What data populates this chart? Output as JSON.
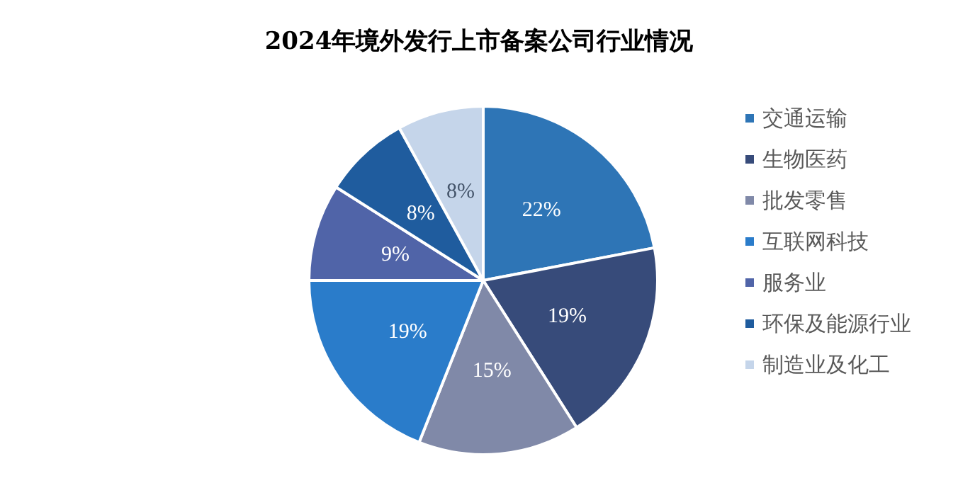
{
  "chart_data": {
    "type": "pie",
    "title": "2024年境外发行上市备案公司行业情况",
    "categories": [
      "交通运输",
      "生物医药",
      "批发零售",
      "互联网科技",
      "服务业",
      "环保及能源行业",
      "制造业及化工"
    ],
    "values": [
      22,
      19,
      15,
      19,
      9,
      8,
      8
    ],
    "colors": [
      "#2e75b6",
      "#374b7a",
      "#8089a8",
      "#2a7cca",
      "#5064a8",
      "#1f5c9e",
      "#c5d5ea"
    ],
    "value_labels": [
      "22%",
      "19%",
      "15%",
      "19%",
      "9%",
      "8%",
      "8%"
    ],
    "legend": "right"
  }
}
